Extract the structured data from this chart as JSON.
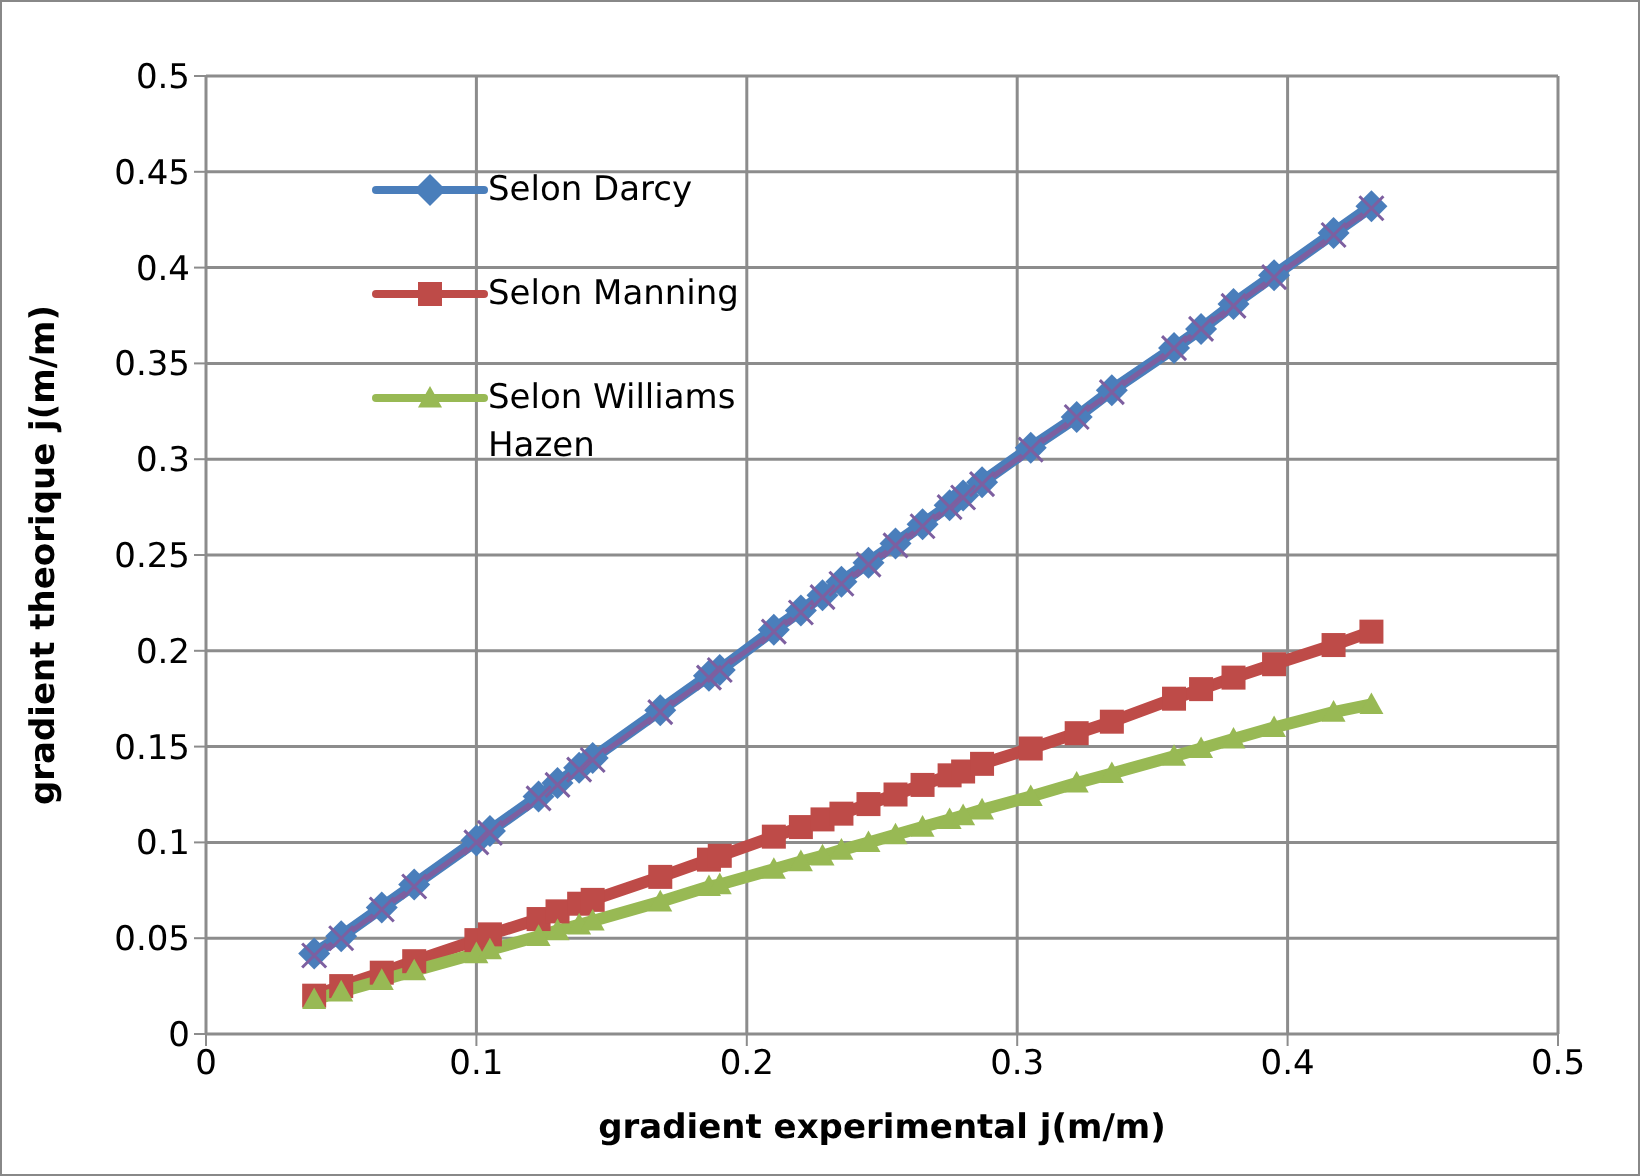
{
  "chart_data": {
    "type": "line",
    "xlabel": "gradient experimental j(m/m)",
    "ylabel": "gradient theorique j(m/m)",
    "x": [
      0.04,
      0.05,
      0.065,
      0.077,
      0.1,
      0.105,
      0.123,
      0.13,
      0.138,
      0.143,
      0.168,
      0.186,
      0.19,
      0.21,
      0.22,
      0.228,
      0.235,
      0.245,
      0.255,
      0.265,
      0.275,
      0.28,
      0.287,
      0.305,
      0.322,
      0.335,
      0.358,
      0.368,
      0.38,
      0.395,
      0.417,
      0.431
    ],
    "series": [
      {
        "name": "Selon Darcy",
        "color": "#4a7ebb",
        "marker": "diamond",
        "values": [
          0.042,
          0.051,
          0.066,
          0.078,
          0.101,
          0.106,
          0.124,
          0.131,
          0.139,
          0.144,
          0.169,
          0.187,
          0.19,
          0.211,
          0.221,
          0.229,
          0.236,
          0.246,
          0.256,
          0.266,
          0.276,
          0.281,
          0.288,
          0.306,
          0.322,
          0.336,
          0.358,
          0.368,
          0.381,
          0.396,
          0.418,
          0.432
        ]
      },
      {
        "name": "Selon Manning",
        "color": "#be4b48",
        "marker": "square",
        "values": [
          0.02,
          0.025,
          0.032,
          0.038,
          0.049,
          0.052,
          0.06,
          0.064,
          0.068,
          0.07,
          0.082,
          0.091,
          0.093,
          0.103,
          0.108,
          0.112,
          0.115,
          0.12,
          0.125,
          0.13,
          0.135,
          0.137,
          0.141,
          0.149,
          0.157,
          0.163,
          0.175,
          0.18,
          0.186,
          0.193,
          0.203,
          0.21
        ]
      },
      {
        "name": "Selon Williams Hazen",
        "color": "#98b954",
        "marker": "triangle",
        "values": [
          0.018,
          0.022,
          0.028,
          0.033,
          0.042,
          0.044,
          0.051,
          0.054,
          0.057,
          0.059,
          0.069,
          0.077,
          0.078,
          0.086,
          0.09,
          0.093,
          0.096,
          0.1,
          0.104,
          0.108,
          0.112,
          0.114,
          0.117,
          0.124,
          0.131,
          0.136,
          0.145,
          0.149,
          0.154,
          0.16,
          0.168,
          0.172
        ]
      },
      {
        "color": "#7d5fa0",
        "marker": "cross",
        "values": [
          0.041,
          0.05,
          0.065,
          0.077,
          0.1,
          0.105,
          0.123,
          0.13,
          0.138,
          0.143,
          0.168,
          0.186,
          0.19,
          0.21,
          0.22,
          0.228,
          0.235,
          0.245,
          0.255,
          0.265,
          0.275,
          0.28,
          0.287,
          0.305,
          0.322,
          0.335,
          0.358,
          0.368,
          0.38,
          0.395,
          0.417,
          0.431
        ]
      }
    ],
    "xlim": [
      0,
      0.5
    ],
    "xticks": [
      0,
      0.1,
      0.2,
      0.3,
      0.4,
      0.5
    ],
    "ylim": [
      0,
      0.5
    ],
    "yticks": [
      0,
      0.05,
      0.1,
      0.15,
      0.2,
      0.25,
      0.3,
      0.35,
      0.4,
      0.45,
      0.5
    ],
    "grid": true,
    "legend": "top left",
    "line_style": "solid"
  }
}
